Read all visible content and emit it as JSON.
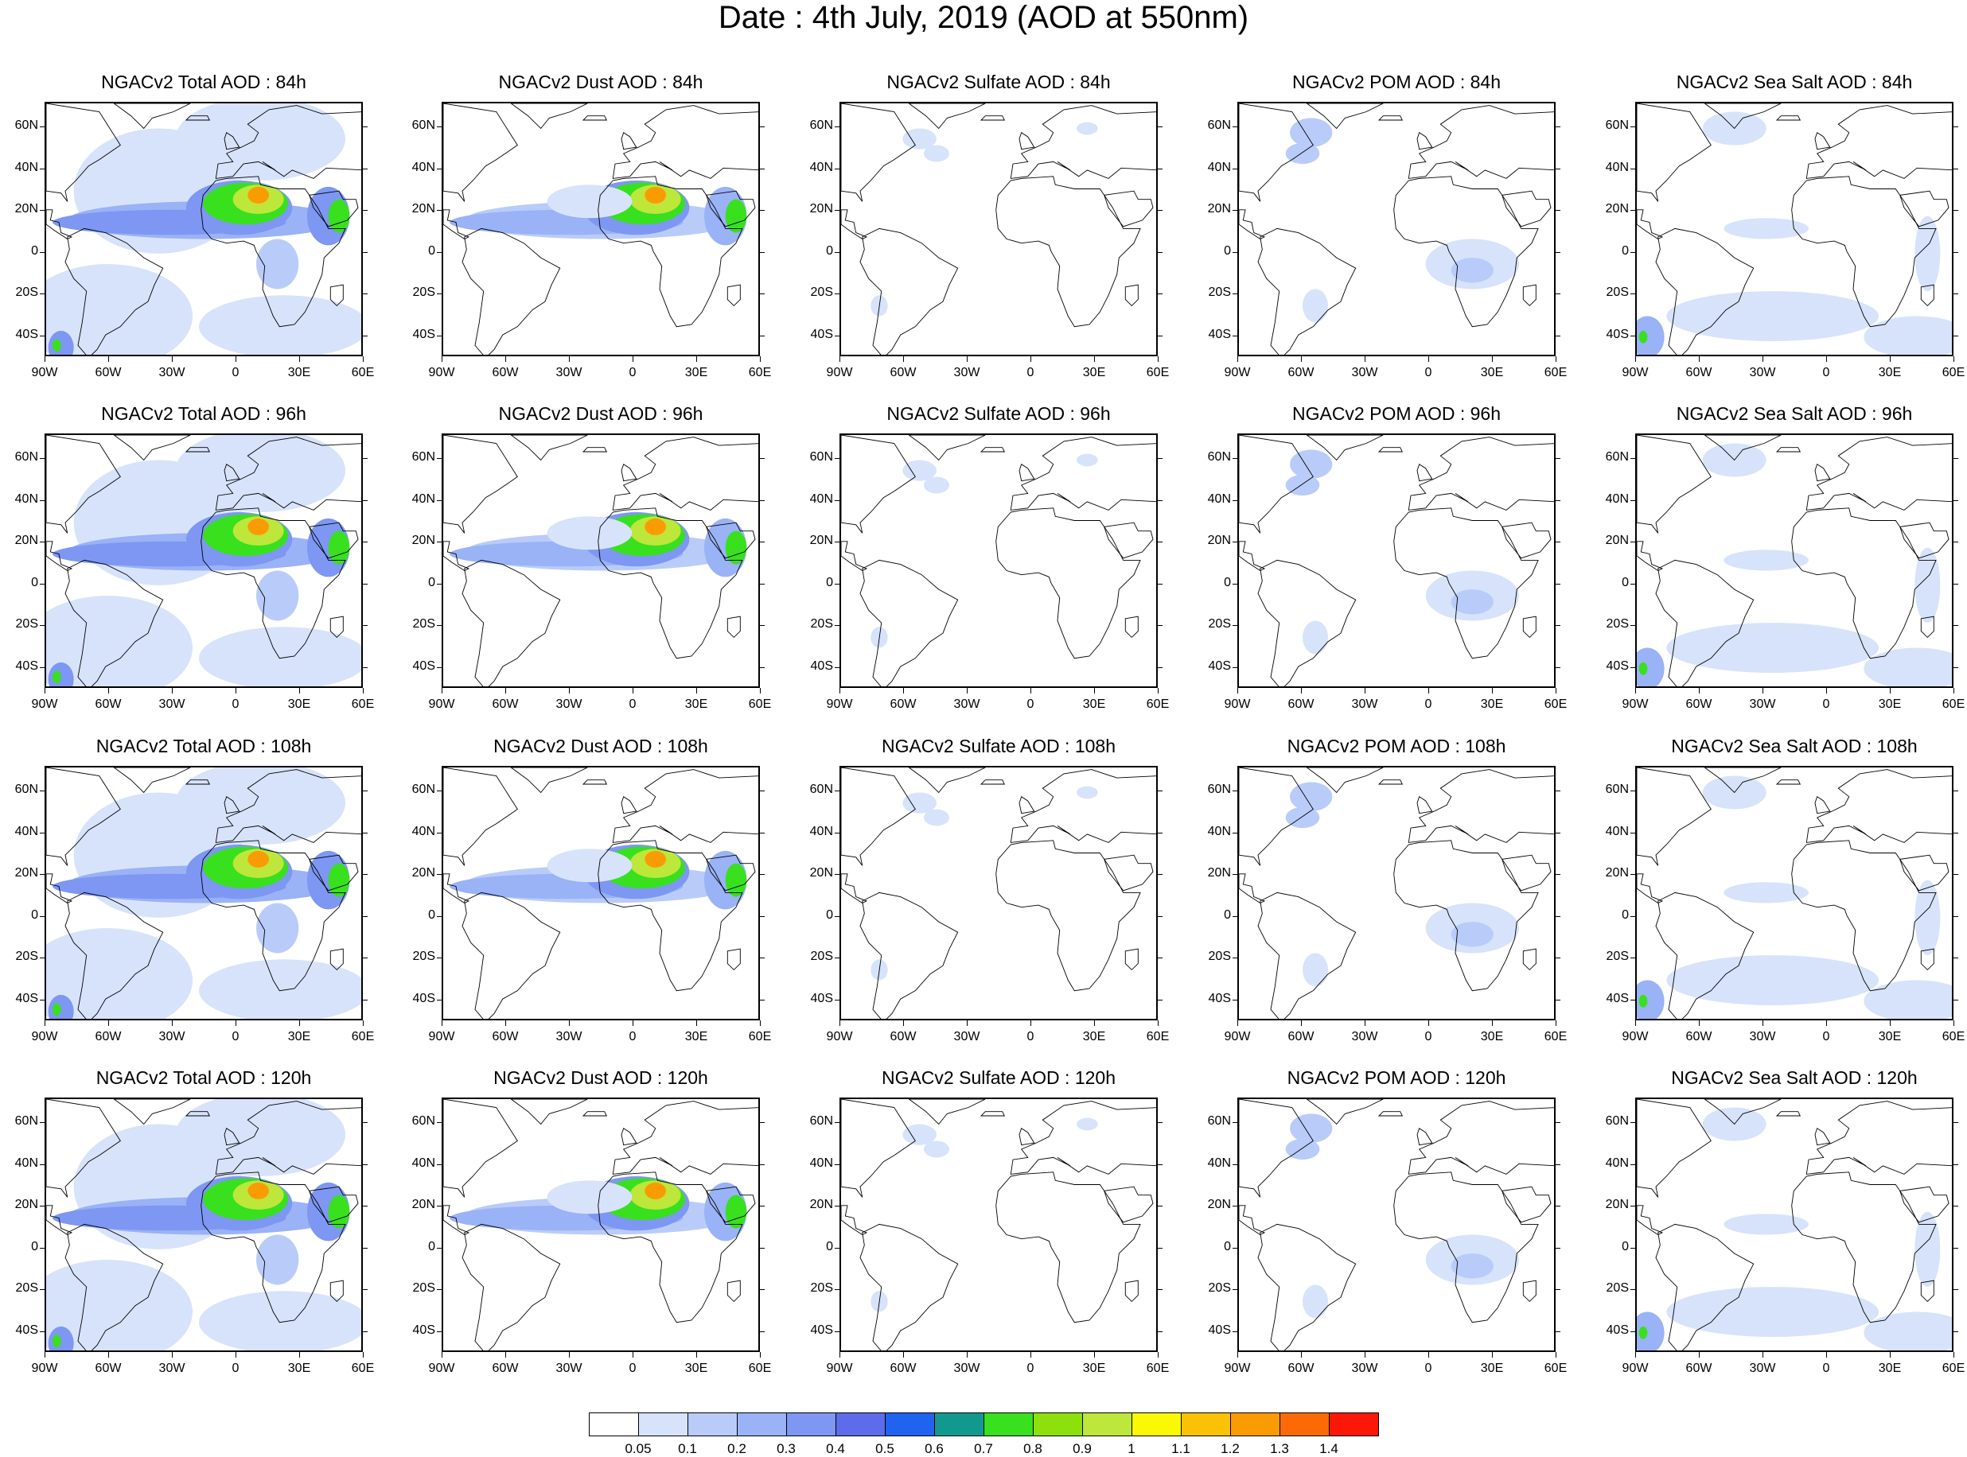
{
  "title": "Date : 4th July, 2019 (AOD at 550nm)",
  "lat_labels": [
    "60N",
    "40N",
    "20N",
    "0",
    "20S",
    "40S"
  ],
  "lat_values": [
    60,
    40,
    20,
    0,
    -20,
    -40
  ],
  "lon_labels": [
    "90W",
    "60W",
    "30W",
    "0",
    "30E",
    "60E"
  ],
  "lon_values": [
    -90,
    -60,
    -30,
    0,
    30,
    60
  ],
  "map_extent": {
    "lon": [
      -90,
      60
    ],
    "lat": [
      -50,
      72
    ]
  },
  "rows": [
    {
      "hour": "84h",
      "panels": [
        {
          "title": "NGACv2 Total AOD : 84h",
          "species": "total"
        },
        {
          "title": "NGACv2 Dust AOD : 84h",
          "species": "dust"
        },
        {
          "title": "NGACv2 Sulfate AOD : 84h",
          "species": "sulfate"
        },
        {
          "title": "NGACv2 POM AOD : 84h",
          "species": "pom"
        },
        {
          "title": "NGACv2 Sea Salt AOD : 84h",
          "species": "seasalt"
        }
      ]
    },
    {
      "hour": "96h",
      "panels": [
        {
          "title": "NGACv2 Total AOD : 96h",
          "species": "total"
        },
        {
          "title": "NGACv2 Dust AOD : 96h",
          "species": "dust"
        },
        {
          "title": "NGACv2 Sulfate AOD : 96h",
          "species": "sulfate"
        },
        {
          "title": "NGACv2 POM AOD : 96h",
          "species": "pom"
        },
        {
          "title": "NGACv2 Sea Salt AOD : 96h",
          "species": "seasalt"
        }
      ]
    },
    {
      "hour": "108h",
      "panels": [
        {
          "title": "NGACv2 Total AOD : 108h",
          "species": "total"
        },
        {
          "title": "NGACv2 Dust AOD : 108h",
          "species": "dust"
        },
        {
          "title": "NGACv2 Sulfate AOD : 108h",
          "species": "sulfate"
        },
        {
          "title": "NGACv2 POM AOD : 108h",
          "species": "pom"
        },
        {
          "title": "NGACv2 Sea Salt AOD : 108h",
          "species": "seasalt"
        }
      ]
    },
    {
      "hour": "120h",
      "panels": [
        {
          "title": "NGACv2 Total AOD : 120h",
          "species": "total"
        },
        {
          "title": "NGACv2 Dust AOD : 120h",
          "species": "dust"
        },
        {
          "title": "NGACv2 Sulfate AOD : 120h",
          "species": "sulfate"
        },
        {
          "title": "NGACv2 POM AOD : 120h",
          "species": "pom"
        },
        {
          "title": "NGACv2 Sea Salt  AOD : 120h",
          "species": "seasalt"
        }
      ]
    }
  ],
  "colorbar": {
    "labels": [
      "0.05",
      "0.1",
      "0.2",
      "0.3",
      "0.4",
      "0.5",
      "0.6",
      "0.7",
      "0.8",
      "0.9",
      "1",
      "1.1",
      "1.2",
      "1.3",
      "1.4"
    ],
    "colors": [
      "#ffffff",
      "#d7e3fb",
      "#b9ccf9",
      "#9ab2f6",
      "#7d97f2",
      "#5c6cea",
      "#1f63f0",
      "#12998f",
      "#38e01e",
      "#8ee00c",
      "#bde73a",
      "#fbf805",
      "#fbc106",
      "#fb9b04",
      "#fb6a04",
      "#fb1808"
    ]
  }
}
